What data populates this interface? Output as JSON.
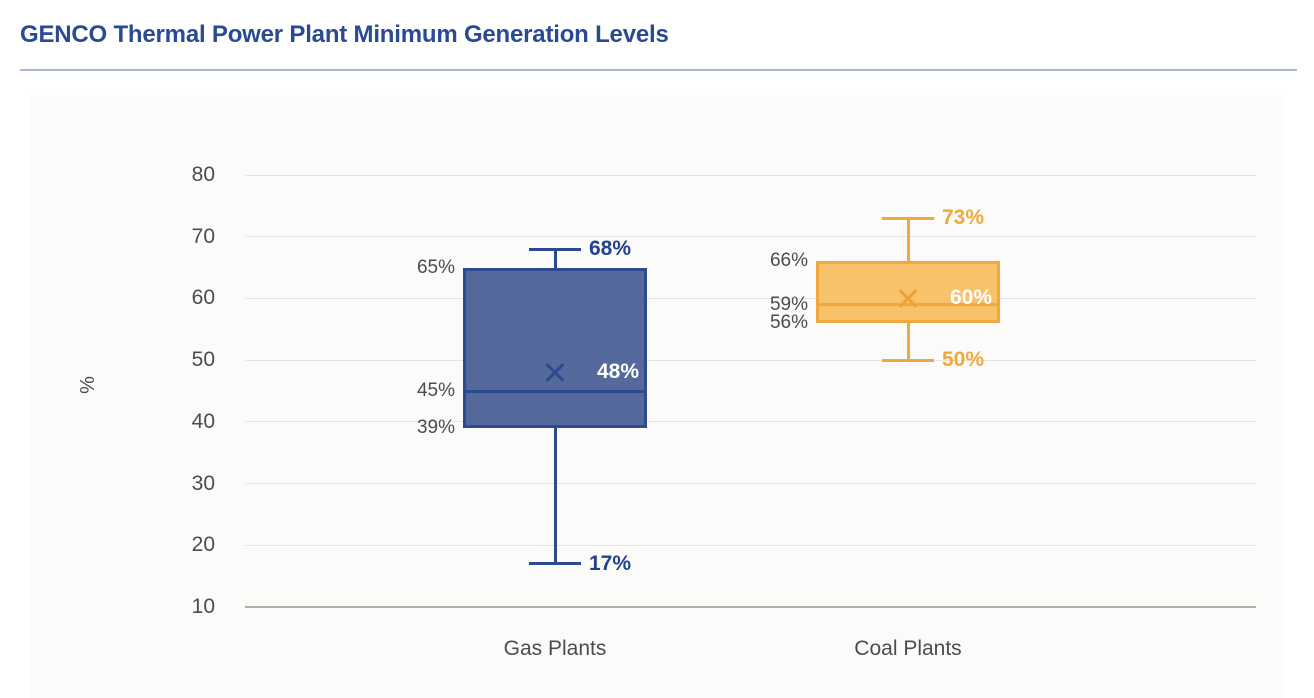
{
  "page": {
    "title": "GENCO Thermal Power Plant Minimum Generation Levels"
  },
  "colors": {
    "title": "#2a4a94",
    "separator": "#a9b7d3",
    "panel_bg": "#fbfbf9",
    "gridline": "#e5e4e2",
    "axis_line": "#b2b0ad",
    "text_gray": "#4c4c4c",
    "mean_label_white": "#ffffff"
  },
  "chart_data": {
    "type": "boxplot",
    "title": "GENCO Thermal Power Plant Minimum Generation Levels",
    "xlabel": "",
    "ylabel": "%",
    "ylim": [
      10,
      80
    ],
    "yticks": [
      "10",
      "20",
      "30",
      "40",
      "50",
      "60",
      "70",
      "80"
    ],
    "grid": true,
    "categories": [
      "Gas Plants",
      "Coal Plants"
    ],
    "series": [
      {
        "name": "Gas Plants",
        "min": 17,
        "q1": 39,
        "median": 45,
        "mean": 48,
        "q3": 65,
        "max": 68,
        "labels": {
          "min": "17%",
          "q1": "39%",
          "median": "45%",
          "mean": "48%",
          "q3": "65%",
          "max": "68%"
        },
        "fill_color": "#55699d",
        "border_color": "#2b4a8f",
        "label_color": "#23418f",
        "mean_marker_color": "#2b4a8f"
      },
      {
        "name": "Coal Plants",
        "min": 50,
        "q1": 56,
        "median": 59,
        "mean": 60,
        "q3": 66,
        "max": 73,
        "labels": {
          "min": "50%",
          "q1": "56%",
          "median": "59%",
          "mean": "60%",
          "q3": "66%",
          "max": "73%"
        },
        "fill_color": "#f8c26b",
        "border_color": "#f2a840",
        "label_color": "#f3a83c",
        "mean_marker_color": "#efa036"
      }
    ]
  }
}
